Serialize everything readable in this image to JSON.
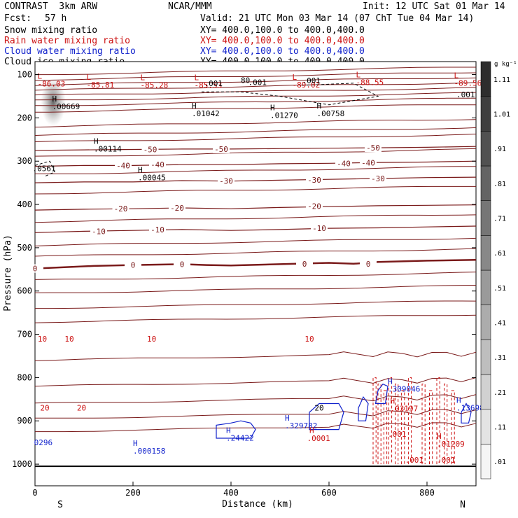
{
  "header": {
    "title": "CONTRAST  3km ARW",
    "center": "NCAR/MMM",
    "init": "Init: 12 UTC Sat 01 Mar 14",
    "fcst_label": "Fcst:",
    "fcst_value": "57 h",
    "valid": "Valid: 21 UTC Mon 03 Mar 14 (07 ChT Tue 04 Mar 14)"
  },
  "fields": [
    {
      "name": "Snow mixing ratio",
      "xy": "XY= 400.0,100.0 to 400.0,400.0",
      "color": "#000000"
    },
    {
      "name": "Rain water mixing ratio",
      "xy": "XY= 400.0,100.0 to 400.0,400.0",
      "color": "#cc1111"
    },
    {
      "name": "Cloud water mixing ratio",
      "xy": "XY= 400.0,100.0 to 400.0,400.0",
      "color": "#1122cc"
    },
    {
      "name": "Cloud ice mixing ratio",
      "xy": "XY= 400.0,100.0 to 400.0,400.0",
      "color": "#000000"
    }
  ],
  "chart_data": {
    "type": "contour",
    "xlabel": "Distance (km)",
    "ylabel": "Pressure (hPa)",
    "xlim": [
      0,
      900
    ],
    "ylim": [
      1050,
      70
    ],
    "x_ticks": [
      0,
      200,
      400,
      600,
      800
    ],
    "y_ticks": [
      100,
      200,
      300,
      400,
      500,
      600,
      700,
      800,
      900,
      1000
    ],
    "x_end_labels": {
      "left": "S",
      "right": "N"
    },
    "colorbar": {
      "unit": "g kg⁻¹",
      "labels": [
        ".01",
        ".11",
        ".21",
        ".31",
        ".41",
        ".51",
        ".61",
        ".71",
        ".81",
        ".91",
        "1.01",
        "1.11"
      ]
    },
    "temperature_contours": [
      {
        "label": "0",
        "points": [
          [
            0,
            548
          ],
          [
            60,
            545
          ],
          [
            120,
            542
          ],
          [
            200,
            540
          ],
          [
            300,
            538
          ],
          [
            350,
            540
          ],
          [
            400,
            541
          ],
          [
            500,
            538
          ],
          [
            600,
            535
          ],
          [
            650,
            537
          ],
          [
            700,
            533
          ],
          [
            800,
            530
          ],
          [
            900,
            528
          ]
        ],
        "bold": true,
        "labels_at": [
          [
            0,
            548
          ],
          [
            200,
            540
          ],
          [
            300,
            538
          ],
          [
            550,
            537
          ],
          [
            680,
            537
          ]
        ]
      },
      {
        "label": "-10",
        "points": [
          [
            0,
            465
          ],
          [
            100,
            462
          ],
          [
            200,
            460
          ],
          [
            300,
            458
          ],
          [
            400,
            460
          ],
          [
            500,
            458
          ],
          [
            600,
            455
          ],
          [
            700,
            454
          ],
          [
            800,
            452
          ],
          [
            900,
            450
          ]
        ],
        "labels_at": [
          [
            130,
            462
          ],
          [
            250,
            458
          ],
          [
            580,
            455
          ]
        ]
      },
      {
        "label": "-20",
        "points": [
          [
            0,
            413
          ],
          [
            100,
            411
          ],
          [
            200,
            410
          ],
          [
            300,
            408
          ],
          [
            400,
            410
          ],
          [
            500,
            407
          ],
          [
            600,
            405
          ],
          [
            700,
            403
          ],
          [
            800,
            402
          ],
          [
            900,
            401
          ]
        ],
        "labels_at": [
          [
            175,
            410
          ],
          [
            290,
            408
          ],
          [
            570,
            404
          ]
        ]
      },
      {
        "label": "-30",
        "points": [
          [
            0,
            350
          ],
          [
            100,
            348
          ],
          [
            200,
            348
          ],
          [
            300,
            345
          ],
          [
            400,
            346
          ],
          [
            500,
            344
          ],
          [
            600,
            342
          ],
          [
            700,
            340
          ],
          [
            800,
            338
          ],
          [
            900,
            337
          ]
        ],
        "labels_at": [
          [
            390,
            346
          ],
          [
            570,
            343
          ],
          [
            700,
            340
          ]
        ]
      },
      {
        "label": "-40",
        "points": [
          [
            0,
            312
          ],
          [
            100,
            310
          ],
          [
            200,
            310
          ],
          [
            300,
            308
          ],
          [
            400,
            308
          ],
          [
            500,
            306
          ],
          [
            600,
            305
          ],
          [
            700,
            303
          ],
          [
            800,
            302
          ],
          [
            900,
            300
          ]
        ],
        "labels_at": [
          [
            180,
            310
          ],
          [
            250,
            308
          ],
          [
            630,
            305
          ],
          [
            680,
            304
          ]
        ]
      },
      {
        "label": "-50",
        "points": [
          [
            0,
            275
          ],
          [
            100,
            274
          ],
          [
            200,
            273
          ],
          [
            300,
            272
          ],
          [
            400,
            272
          ],
          [
            500,
            271
          ],
          [
            600,
            270
          ],
          [
            700,
            269
          ],
          [
            800,
            268
          ],
          [
            900,
            266
          ]
        ],
        "labels_at": [
          [
            235,
            273
          ],
          [
            380,
            272
          ],
          [
            690,
            269
          ]
        ]
      }
    ],
    "extra_contour_labels": [
      {
        "text": "10",
        "x": 15,
        "y": 710,
        "color": "#cc1111"
      },
      {
        "text": "10",
        "x": 70,
        "y": 710,
        "color": "#cc1111"
      },
      {
        "text": "10",
        "x": 238,
        "y": 710,
        "color": "#cc1111"
      },
      {
        "text": "10",
        "x": 560,
        "y": 710,
        "color": "#cc1111"
      },
      {
        "text": "20",
        "x": 20,
        "y": 870,
        "color": "#cc1111"
      },
      {
        "text": "20",
        "x": 95,
        "y": 870,
        "color": "#cc1111"
      },
      {
        "text": "20",
        "x": 580,
        "y": 870,
        "color": "#000000"
      }
    ],
    "extrema": [
      {
        "kind": "L",
        "value": "-86.03",
        "x": 5,
        "y": 110,
        "color": "#cc1111"
      },
      {
        "kind": "L",
        "value": "-85.81",
        "x": 105,
        "y": 112,
        "color": "#cc1111"
      },
      {
        "kind": "L",
        "value": "-85.28",
        "x": 215,
        "y": 113,
        "color": "#cc1111"
      },
      {
        "kind": "L",
        "value": "-85.53",
        "x": 325,
        "y": 113,
        "color": "#cc1111"
      },
      {
        "kind": "L",
        "value": "-89.02",
        "x": 525,
        "y": 112,
        "color": "#cc1111"
      },
      {
        "kind": "L",
        "value": "-88.55",
        "x": 655,
        "y": 106,
        "color": "#cc1111"
      },
      {
        "kind": "L",
        "value": "-89.56",
        "x": 855,
        "y": 108,
        "color": "#cc1111"
      },
      {
        "kind": "H",
        "value": ".00669",
        "x": 35,
        "y": 162,
        "color": "#000000"
      },
      {
        "kind": "H",
        "value": ".01042",
        "x": 320,
        "y": 178,
        "color": "#000000"
      },
      {
        "kind": "H",
        "value": ".01270",
        "x": 480,
        "y": 182,
        "color": "#000000"
      },
      {
        "kind": "H",
        "value": ".00758",
        "x": 575,
        "y": 178,
        "color": "#000000"
      },
      {
        "kind": "H",
        "value": ".00114",
        "x": 120,
        "y": 260,
        "color": "#000000"
      },
      {
        "kind": "H",
        "value": ".00045",
        "x": 210,
        "y": 326,
        "color": "#000000"
      },
      {
        "kind": "H",
        "value": ".000158",
        "x": 200,
        "y": 958,
        "color": "#1122cc"
      },
      {
        "kind": "H",
        "value": ".24422",
        "x": 390,
        "y": 928,
        "color": "#1122cc"
      },
      {
        "kind": "H",
        "value": ".329782",
        "x": 510,
        "y": 900,
        "color": "#1122cc"
      },
      {
        "kind": "H",
        "value": ".309046",
        "x": 720,
        "y": 815,
        "color": "#1122cc"
      },
      {
        "kind": "H",
        "value": ".13698",
        "x": 860,
        "y": 858,
        "color": "#1122cc"
      },
      {
        "kind": "H",
        "value": ".03197",
        "x": 725,
        "y": 860,
        "color": "#cc1111"
      },
      {
        "kind": "H",
        "value": ".01209",
        "x": 820,
        "y": 942,
        "color": "#cc1111"
      },
      {
        "kind": "H",
        "value": "",
        "x": 560,
        "y": 928,
        "color": "#cc1111"
      }
    ],
    "small_labels": [
      {
        "text": ".001",
        "x": 345,
        "y": 120,
        "color": "#000000"
      },
      {
        "text": ".001",
        "x": 435,
        "y": 118,
        "color": "#000000"
      },
      {
        "text": ".001",
        "x": 545,
        "y": 114,
        "color": "#000000"
      },
      {
        "text": ".001",
        "x": 860,
        "y": 146,
        "color": "#000000"
      },
      {
        "text": ".0001",
        "x": 555,
        "y": 940,
        "color": "#cc1111"
      },
      {
        "text": ".001",
        "x": 720,
        "y": 930,
        "color": "#cc1111"
      },
      {
        "text": ".001",
        "x": 755,
        "y": 990,
        "color": "#cc1111"
      },
      {
        "text": ".001",
        "x": 820,
        "y": 990,
        "color": "#cc1111"
      },
      {
        "text": ".0561",
        "x": -5,
        "y": 317,
        "color": "#000000"
      },
      {
        "text": "0296",
        "x": -2,
        "y": 950,
        "color": "#1122cc"
      },
      {
        "text": "80",
        "x": 420,
        "y": 113,
        "color": "#000000"
      }
    ]
  },
  "axis_labels_extra": {
    "y_top_label": "100"
  }
}
